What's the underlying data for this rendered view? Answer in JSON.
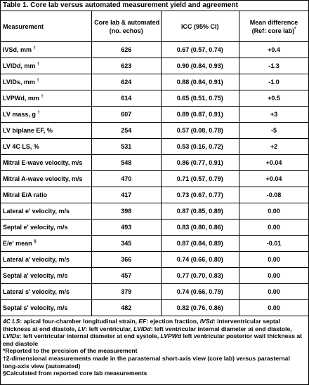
{
  "title": "Table 1. Core lab versus automated measurement yield and agreement",
  "headers": {
    "measurement": "Measurement",
    "count_line1": "Core lab & automated",
    "count_line2": "(no. echos)",
    "icc": "ICC (95% CI)",
    "diff_line1": "Mean difference",
    "diff_line2": "(Ref: core lab)",
    "diff_sup": "*"
  },
  "rows": [
    {
      "measurement": "IVSd, mm",
      "sup": "†",
      "count": "626",
      "icc": "0.67 (0.57, 0.74)",
      "diff": "+0.4"
    },
    {
      "measurement": "LVIDd, mm",
      "sup": "†",
      "count": "623",
      "icc": "0.90 (0.84, 0.93)",
      "diff": "-1.3"
    },
    {
      "measurement": "LVIDs, mm",
      "sup": "†",
      "count": "624",
      "icc": "0.88 (0.84, 0.91)",
      "diff": "-1.0"
    },
    {
      "measurement": "LVPWd, mm",
      "sup": "†",
      "count": "614",
      "icc": "0.65 (0.51, 0.75)",
      "diff": "+0.5"
    },
    {
      "measurement": "LV mass, g",
      "sup": "†",
      "count": "607",
      "icc": "0.89 (0.87, 0.91)",
      "diff": "+3"
    },
    {
      "measurement": "LV biplane EF, %",
      "sup": "",
      "count": "254",
      "icc": "0.57 (0.08, 0.78)",
      "diff": "-5"
    },
    {
      "measurement": "LV 4C LS, %",
      "sup": "",
      "count": "531",
      "icc": "0.53 (0.16, 0.72)",
      "diff": "+2"
    },
    {
      "measurement": "Mitral E-wave velocity, m/s",
      "sup": "",
      "count": "548",
      "icc": "0.86 (0.77, 0.91)",
      "diff": "+0.04"
    },
    {
      "measurement": "Mitral A-wave velocity, m/s",
      "sup": "",
      "count": "470",
      "icc": "0.71 (0.57, 0.79)",
      "diff": "+0.04"
    },
    {
      "measurement": "Mitral E/A ratio",
      "sup": "",
      "count": "417",
      "icc": "0.73 (0.67, 0.77)",
      "diff": "-0.08"
    },
    {
      "measurement": "Lateral e' velocity, m/s",
      "sup": "",
      "count": "398",
      "icc": "0.87 (0.85, 0.89)",
      "diff": "0.00"
    },
    {
      "measurement": "Septal e' velocity, m/s",
      "sup": "",
      "count": "493",
      "icc": "0.83 (0.80, 0.86)",
      "diff": "0.00"
    },
    {
      "measurement": "E/e' mean",
      "sup": "§",
      "count": "345",
      "icc": "0.87 (0.84, 0.89)",
      "diff": "-0.01"
    },
    {
      "measurement": "Lateral a' velocity, m/s",
      "sup": "",
      "count": "366",
      "icc": "0.74 (0.66, 0.80)",
      "diff": "0.00"
    },
    {
      "measurement": "Septal a' velocity, m/s",
      "sup": "",
      "count": "457",
      "icc": "0.77 (0.70, 0.83)",
      "diff": "0.00"
    },
    {
      "measurement": "Lateral s' velocity, m/s",
      "sup": "",
      "count": "379",
      "icc": "0.74 (0.66, 0.79)",
      "diff": "0.00"
    },
    {
      "measurement": "Septal s' velocity, m/s",
      "sup": "",
      "count": "482",
      "icc": "0.82 (0.76, 0.86)",
      "diff": "0.00"
    }
  ],
  "footnotes": {
    "abbreviations": [
      {
        "abbr": "4C LS",
        "def": ": apical four-chamber longitudinal strain, "
      },
      {
        "abbr": "EF",
        "def": ": ejection fraction, "
      },
      {
        "abbr": "IVSd",
        "def": ": interventricular septal thickness at end diastole, "
      },
      {
        "abbr": "LV",
        "def": ": left ventricular, "
      },
      {
        "abbr": "LVIDd",
        "def": ": left ventricular internal diameter at end diastole, "
      },
      {
        "abbr": "LVIDs",
        "def": ": left ventricular internal diameter at end systole, "
      },
      {
        "abbr": "LVPWd",
        "def": " left ventricular posterior wall thickness at end diastole"
      }
    ],
    "note_star": "*Reported to the precision of the measurement",
    "note_dagger": "†2-dimensional measurements made in the parasternal short-axis view (core lab) versus parasternal long-axis view (automated)",
    "note_section": "§Calculated from reported core lab measurements"
  }
}
